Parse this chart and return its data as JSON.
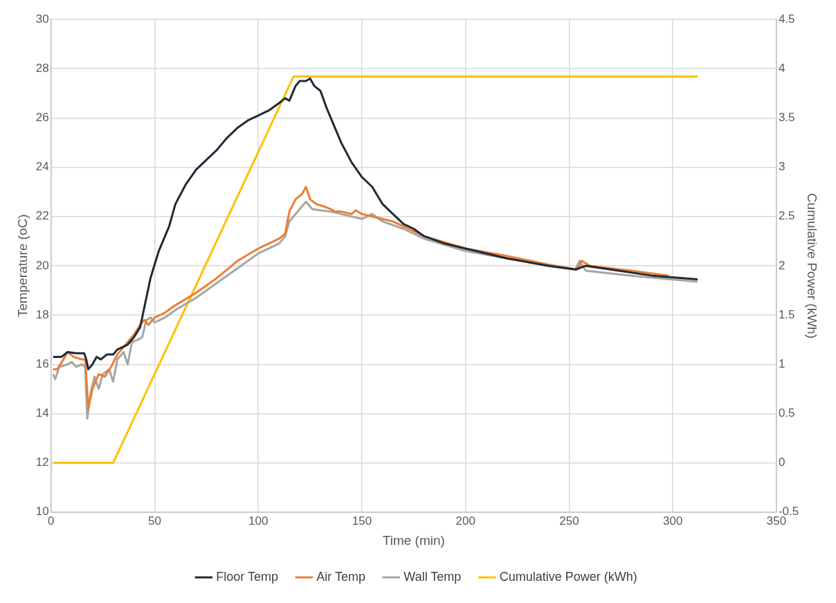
{
  "chart_data": {
    "type": "line",
    "xlabel": "Time (min)",
    "ylabel": "Temperature (oC)",
    "y2label": "Cumulative Power (kWh)",
    "xlim": [
      0,
      350
    ],
    "xticks": [
      0,
      50,
      100,
      150,
      200,
      250,
      300,
      350
    ],
    "ylim": [
      10,
      30
    ],
    "yticks": [
      10,
      12,
      14,
      16,
      18,
      20,
      22,
      24,
      26,
      28,
      30
    ],
    "y2lim": [
      -0.5,
      4.5
    ],
    "y2ticks": [
      -0.5,
      0,
      0.5,
      1,
      1.5,
      2,
      2.5,
      3,
      3.5,
      4,
      4.5
    ],
    "grid": true,
    "legend": "bottom",
    "marker": "none",
    "line_style": "solid",
    "series": [
      {
        "name": "Floor Temp",
        "color": "#1f2a36",
        "x": [
          1,
          5,
          8,
          12,
          16,
          17,
          18,
          20,
          22,
          24,
          27,
          30,
          32,
          37,
          40,
          43,
          45,
          48,
          52,
          57,
          60,
          65,
          70,
          75,
          80,
          85,
          90,
          95,
          100,
          105,
          110,
          113,
          115,
          118,
          120,
          123,
          125,
          127,
          130,
          133,
          137,
          140,
          145,
          150,
          155,
          160,
          165,
          170,
          175,
          180,
          190,
          200,
          220,
          240,
          253,
          258,
          270,
          290,
          312
        ],
        "values": [
          16.3,
          16.3,
          16.5,
          16.45,
          16.45,
          16.2,
          15.8,
          16.0,
          16.3,
          16.2,
          16.4,
          16.4,
          16.6,
          16.8,
          17.1,
          17.5,
          18.3,
          19.5,
          20.6,
          21.6,
          22.5,
          23.3,
          23.9,
          24.3,
          24.7,
          25.2,
          25.6,
          25.9,
          26.1,
          26.3,
          26.6,
          26.8,
          26.7,
          27.3,
          27.5,
          27.5,
          27.6,
          27.3,
          27.1,
          26.4,
          25.6,
          25.0,
          24.2,
          23.6,
          23.2,
          22.5,
          22.1,
          21.7,
          21.5,
          21.2,
          20.9,
          20.7,
          20.3,
          20.0,
          19.85,
          20.0,
          19.85,
          19.6,
          19.45
        ]
      },
      {
        "name": "Air Temp",
        "color": "#ed7d31",
        "x": [
          1,
          3,
          6,
          8,
          11,
          15,
          16.5,
          18,
          20,
          23,
          26,
          29,
          32,
          36,
          40,
          43,
          45,
          47,
          50,
          55,
          60,
          70,
          80,
          90,
          100,
          105,
          110,
          113,
          115,
          118,
          121,
          123,
          125,
          128,
          132,
          135,
          137,
          140,
          145,
          147,
          150,
          155,
          160,
          165,
          170,
          180,
          200,
          220,
          240,
          254,
          256,
          260,
          280,
          298
        ],
        "values": [
          15.8,
          15.8,
          16.2,
          16.5,
          16.3,
          16.2,
          16.2,
          14.2,
          15.0,
          15.6,
          15.5,
          15.9,
          16.4,
          16.8,
          17.2,
          17.6,
          17.8,
          17.6,
          17.9,
          18.1,
          18.4,
          18.9,
          19.5,
          20.2,
          20.7,
          20.9,
          21.1,
          21.3,
          22.2,
          22.7,
          22.9,
          23.2,
          22.7,
          22.5,
          22.4,
          22.3,
          22.2,
          22.2,
          22.1,
          22.25,
          22.1,
          22.0,
          21.9,
          21.8,
          21.6,
          21.2,
          20.7,
          20.4,
          20.05,
          19.85,
          20.2,
          20.0,
          19.8,
          19.6
        ]
      },
      {
        "name": "Wall Temp",
        "color": "#a5a5a5",
        "x": [
          1,
          2,
          4,
          8,
          10,
          12,
          15,
          16.5,
          17.5,
          19,
          21,
          23,
          25,
          28,
          30,
          32,
          35,
          37,
          39,
          42,
          44,
          46,
          48,
          50,
          55,
          60,
          70,
          80,
          90,
          100,
          110,
          113,
          115,
          118,
          121,
          123,
          126,
          130,
          135,
          140,
          145,
          150,
          155,
          160,
          170,
          180,
          200,
          220,
          240,
          253,
          255,
          258,
          280,
          312
        ],
        "values": [
          15.6,
          15.4,
          15.9,
          16.0,
          16.1,
          15.9,
          16.0,
          15.9,
          13.8,
          14.8,
          15.5,
          15.0,
          15.6,
          15.8,
          15.3,
          16.2,
          16.5,
          16.0,
          16.9,
          17.0,
          17.1,
          17.8,
          17.9,
          17.7,
          17.9,
          18.2,
          18.7,
          19.3,
          19.9,
          20.5,
          20.9,
          21.2,
          21.8,
          22.1,
          22.4,
          22.6,
          22.3,
          22.25,
          22.2,
          22.1,
          22.0,
          21.9,
          22.1,
          21.8,
          21.5,
          21.1,
          20.6,
          20.3,
          20.0,
          19.85,
          20.2,
          19.8,
          19.6,
          19.35
        ]
      },
      {
        "name": "Cumulative Power (kWh)",
        "color": "#ffc000",
        "axis": "y2",
        "x": [
          1,
          30,
          117,
          312
        ],
        "values": [
          0,
          0,
          3.92,
          3.92
        ]
      }
    ]
  }
}
